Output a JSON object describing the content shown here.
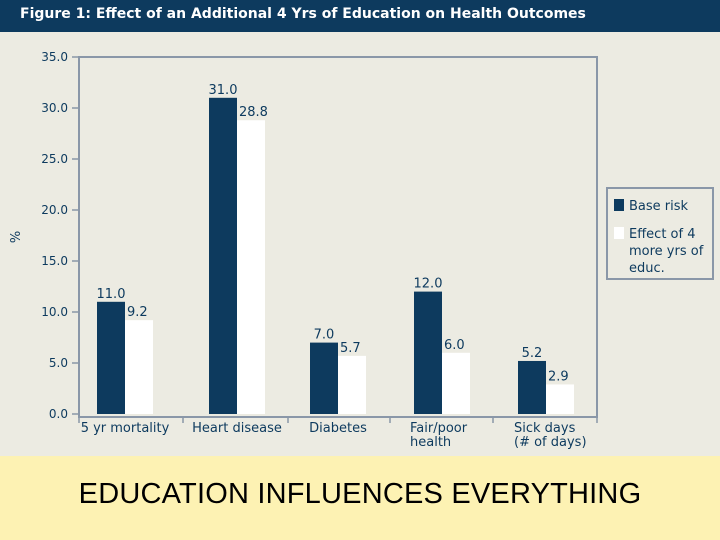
{
  "title": "Figure 1: Effect of an Additional 4 Yrs of Education on Health Outcomes",
  "caption": "EDUCATION INFLUENCES EVERYTHING",
  "colors": {
    "title_bg": "#0d3a5e",
    "base": "#0d3a5e",
    "effect": "#ffffff",
    "frame": "#8a97a8",
    "caption_bg": "#fdf2b3"
  },
  "chart_data": {
    "type": "bar",
    "ylabel": "%",
    "ylim": [
      0,
      35
    ],
    "yticks": [
      "0.0",
      "5.0",
      "10.0",
      "15.0",
      "20.0",
      "25.0",
      "30.0",
      "35.0"
    ],
    "categories": [
      [
        "5 yr mortality"
      ],
      [
        "Heart disease"
      ],
      [
        "Diabetes"
      ],
      [
        "Fair/poor",
        "health"
      ],
      [
        "Sick days",
        "(# of days)"
      ]
    ],
    "series": [
      {
        "name": "Base risk",
        "values": [
          11.0,
          31.0,
          7.0,
          12.0,
          5.2
        ],
        "labels": [
          "11.0",
          "31.0",
          "7.0",
          "12.0",
          "5.2"
        ]
      },
      {
        "name": "Effect of 4 more yrs of educ.",
        "values": [
          9.2,
          28.8,
          5.7,
          6.0,
          2.9
        ],
        "labels": [
          "9.2",
          "28.8",
          "5.7",
          "6.0",
          "2.9"
        ]
      }
    ],
    "legend": {
      "placement": "right",
      "entries": [
        [
          "Base risk"
        ],
        [
          "Effect of 4",
          "more yrs of",
          "educ."
        ]
      ]
    }
  }
}
